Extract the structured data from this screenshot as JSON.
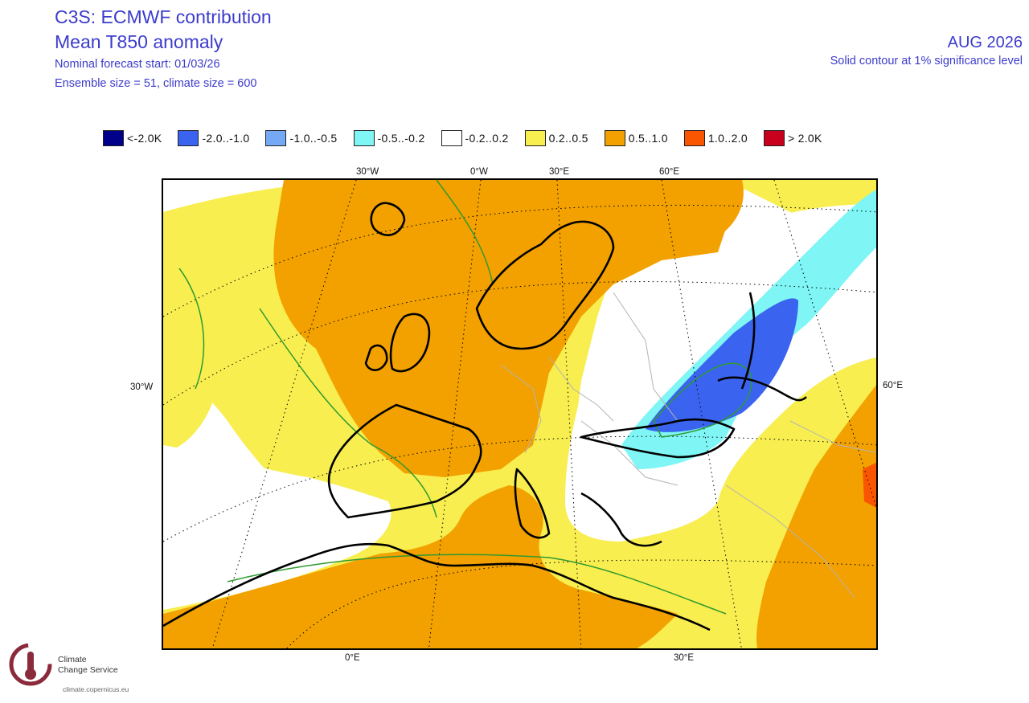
{
  "header": {
    "title": "C3S: ECMWF contribution",
    "subtitle": "Mean T850 anomaly",
    "forecast_start": "Nominal forecast start: 01/03/26",
    "ensemble": "Ensemble size = 51, climate size = 600"
  },
  "right_header": {
    "period": "AUG 2026",
    "note": "Solid contour at 1% significance level"
  },
  "legend": [
    {
      "label": "<-2.0K",
      "color": "#00008b"
    },
    {
      "label": "-2.0..-1.0",
      "color": "#3a64f0"
    },
    {
      "label": "-1.0..-0.5",
      "color": "#75a8f5"
    },
    {
      "label": "-0.5..-0.2",
      "color": "#7ff5f5"
    },
    {
      "label": "-0.2..0.2",
      "color": "#ffffff"
    },
    {
      "label": "0.2..0.5",
      "color": "#f8ee50"
    },
    {
      "label": "0.5..1.0",
      "color": "#f2a100"
    },
    {
      "label": "1.0..2.0",
      "color": "#fa5500"
    },
    {
      "label": "> 2.0K",
      "color": "#c8001e"
    }
  ],
  "axis_labels": {
    "top": [
      "30°W",
      "0°W",
      "30°E",
      "60°E"
    ],
    "bottom": [
      "0°E",
      "30°E"
    ],
    "left": "30°W",
    "right": "60°E"
  },
  "colors": {
    "title": "#3c3ccc",
    "coast": "#000000",
    "border": "#b4b4b4",
    "contour": "#2f9a2f",
    "grid": "#000000"
  },
  "logo": {
    "line1": "Climate",
    "line2": "Change Service",
    "url": "climate.copernicus.eu"
  }
}
